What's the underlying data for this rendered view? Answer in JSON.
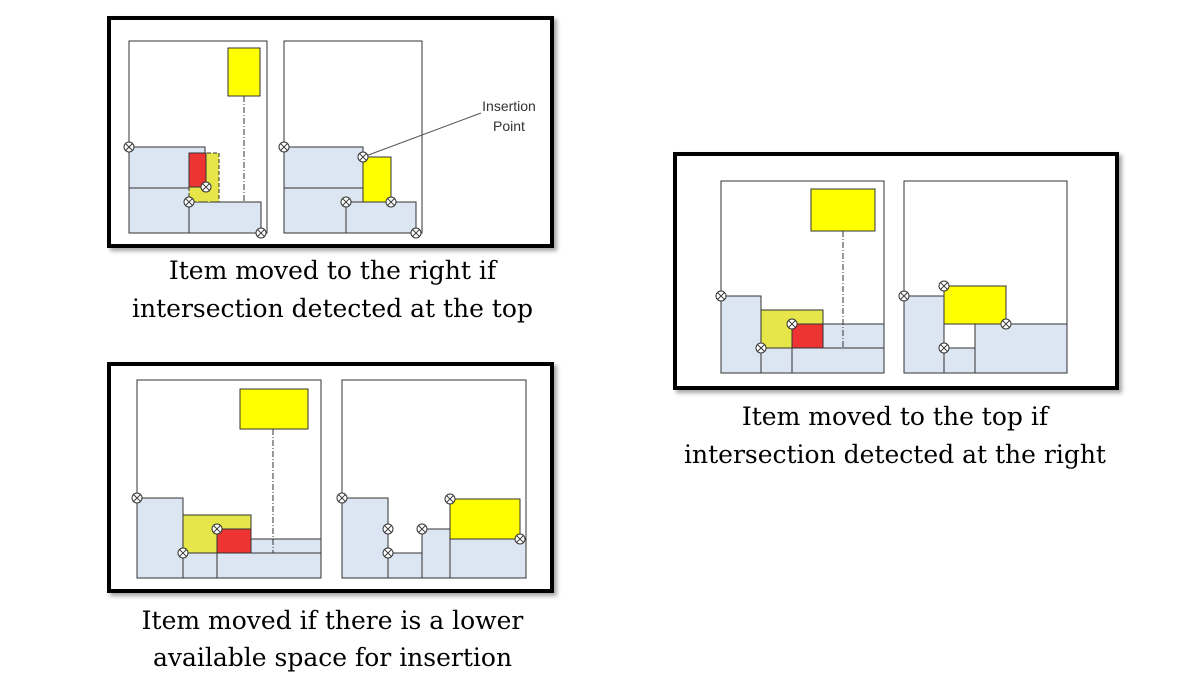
{
  "colors": {
    "region_fill": "#dce6f2",
    "item_fill": "#ffff00",
    "overlap_fill": "#e6e64a",
    "intersect_fill": "#ee3333",
    "line": "#333333"
  },
  "panels": {
    "top_left": {
      "caption_line1": "Item moved to the right if",
      "caption_line2": "intersection detected at the top",
      "insertion_label_line1": "Insertion",
      "insertion_label_line2": "Point"
    },
    "right": {
      "caption_line1": "Item moved to the top if",
      "caption_line2": "intersection detected at the right"
    },
    "bottom_left": {
      "caption_line1": "Item moved if there is a lower",
      "caption_line2": "available space for insertion"
    }
  }
}
